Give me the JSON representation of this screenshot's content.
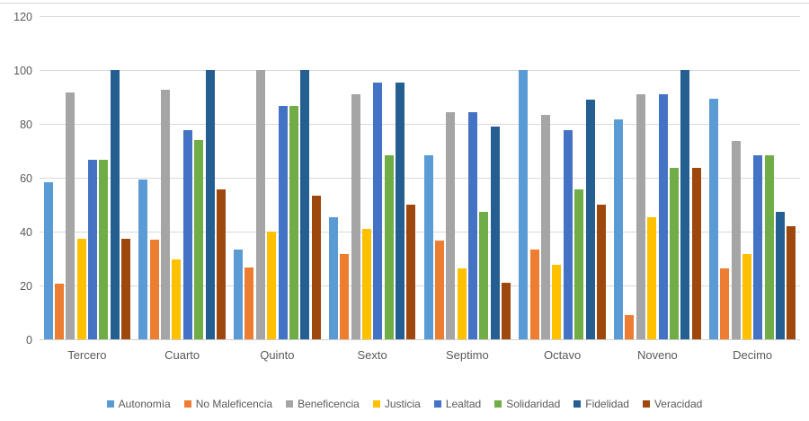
{
  "chart_data": {
    "type": "bar",
    "title": "",
    "xlabel": "",
    "ylabel": "",
    "ylim": [
      0,
      120
    ],
    "ytick_step": 20,
    "ytick_labels": [
      "0",
      "20",
      "40",
      "60",
      "80",
      "100",
      "120"
    ],
    "grid": true,
    "legend_position": "bottom",
    "categories": [
      "Tercero",
      "Cuarto",
      "Quinto",
      "Sexto",
      "Septimo",
      "Octavo",
      "Noveno",
      "Decimo"
    ],
    "series": [
      {
        "name": "Autonomìa",
        "color": "#5B9BD5",
        "values": [
          58.3,
          59.3,
          33.3,
          45.5,
          68.4,
          100.0,
          81.8,
          89.5
        ]
      },
      {
        "name": "No Maleficencia",
        "color": "#ED7D31",
        "values": [
          20.8,
          37.0,
          26.7,
          31.8,
          36.8,
          33.3,
          9.1,
          26.3
        ]
      },
      {
        "name": "Beneficencia",
        "color": "#A5A5A5",
        "values": [
          91.7,
          92.6,
          100.0,
          90.9,
          84.2,
          83.3,
          90.9,
          73.7
        ]
      },
      {
        "name": "Justicia",
        "color": "#FFC000",
        "values": [
          37.5,
          29.6,
          40.0,
          40.9,
          26.3,
          27.8,
          45.5,
          31.6
        ]
      },
      {
        "name": "Lealtad",
        "color": "#4472C4",
        "values": [
          66.7,
          77.8,
          86.7,
          95.5,
          84.2,
          77.8,
          90.9,
          68.4
        ]
      },
      {
        "name": "Solidaridad",
        "color": "#70AD47",
        "values": [
          66.7,
          74.1,
          86.7,
          68.2,
          47.4,
          55.6,
          63.6,
          68.4
        ]
      },
      {
        "name": "Fidelidad",
        "color": "#255E91",
        "values": [
          100.0,
          100.0,
          100.0,
          95.5,
          78.9,
          88.9,
          100.0,
          47.4
        ]
      },
      {
        "name": "Veracidad",
        "color": "#9E480E",
        "values": [
          37.5,
          55.6,
          53.3,
          50.0,
          21.1,
          50.0,
          63.6,
          42.1
        ]
      }
    ]
  },
  "style": {
    "gridline_color": "#d9d9d9",
    "axis_text_color": "#595959",
    "background": "#ffffff"
  }
}
